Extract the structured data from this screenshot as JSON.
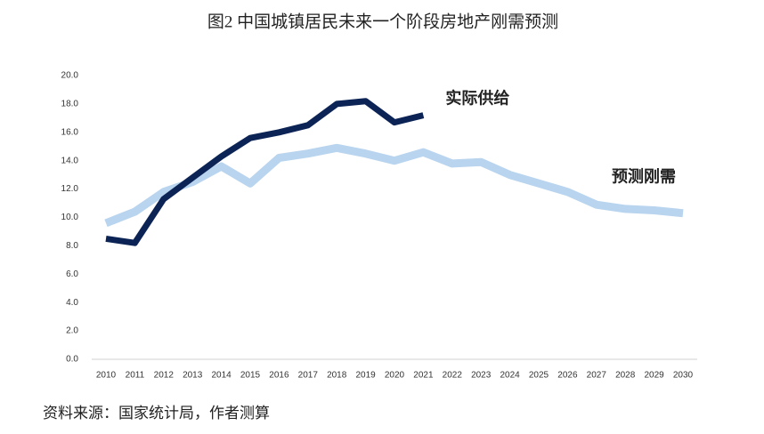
{
  "chart_data": {
    "type": "line",
    "title": "图2  中国城镇居民未来一个阶段房地产刚需预测",
    "source": "资料来源：国家统计局，作者测算",
    "categories": [
      "2010",
      "2011",
      "2012",
      "2013",
      "2014",
      "2015",
      "2016",
      "2017",
      "2018",
      "2019",
      "2020",
      "2021",
      "2022",
      "2023",
      "2024",
      "2025",
      "2026",
      "2027",
      "2028",
      "2029",
      "2030"
    ],
    "series": [
      {
        "name": "预测刚需",
        "color": "#b8d4ee",
        "values": [
          9.6,
          10.4,
          11.8,
          12.5,
          13.6,
          12.4,
          14.2,
          14.5,
          14.9,
          14.5,
          14.0,
          14.6,
          13.8,
          13.9,
          13.0,
          12.4,
          11.8,
          10.9,
          10.6,
          10.5,
          10.3
        ]
      },
      {
        "name": "实际供给",
        "color": "#0c2356",
        "values": [
          8.5,
          8.2,
          11.3,
          12.8,
          14.3,
          15.6,
          16.0,
          16.5,
          18.0,
          18.2,
          16.7,
          17.2,
          null,
          null,
          null,
          null,
          null,
          null,
          null,
          null,
          null
        ]
      }
    ],
    "ylim": [
      0,
      20
    ],
    "yticks": [
      {
        "value": 0,
        "label": "0.0"
      },
      {
        "value": 2,
        "label": "2.0"
      },
      {
        "value": 4,
        "label": "4.0"
      },
      {
        "value": 6,
        "label": "6.0"
      },
      {
        "value": 8,
        "label": "8.0"
      },
      {
        "value": 10,
        "label": "10.0"
      },
      {
        "value": 12,
        "label": "12.0"
      },
      {
        "value": 14,
        "label": "14.0"
      },
      {
        "value": 16,
        "label": "16.0"
      },
      {
        "value": 18,
        "label": "18.0"
      },
      {
        "value": 20,
        "label": "20.0"
      }
    ],
    "grid": false
  }
}
